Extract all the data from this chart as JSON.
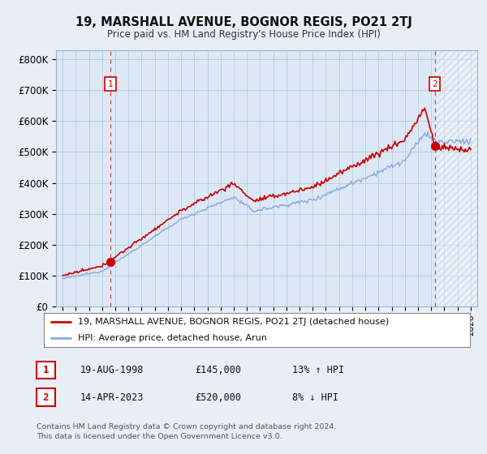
{
  "title": "19, MARSHALL AVENUE, BOGNOR REGIS, PO21 2TJ",
  "subtitle": "Price paid vs. HM Land Registry's House Price Index (HPI)",
  "ylabel_ticks": [
    "£0",
    "£100K",
    "£200K",
    "£300K",
    "£400K",
    "£500K",
    "£600K",
    "£700K",
    "£800K"
  ],
  "ytick_values": [
    0,
    100000,
    200000,
    300000,
    400000,
    500000,
    600000,
    700000,
    800000
  ],
  "ylim": [
    0,
    830000
  ],
  "xlim_start": 1994.5,
  "xlim_end": 2026.5,
  "sale1_x": 1998.63,
  "sale1_y": 145000,
  "sale1_label": "1",
  "sale2_x": 2023.28,
  "sale2_y": 520000,
  "sale2_label": "2",
  "red_line_color": "#cc0000",
  "blue_line_color": "#88aadd",
  "dashed_color": "#cc0000",
  "legend_red_label": "19, MARSHALL AVENUE, BOGNOR REGIS, PO21 2TJ (detached house)",
  "legend_blue_label": "HPI: Average price, detached house, Arun",
  "sale1_date": "19-AUG-1998",
  "sale1_price": "£145,000",
  "sale1_hpi": "13% ↑ HPI",
  "sale2_date": "14-APR-2023",
  "sale2_price": "£520,000",
  "sale2_hpi": "8% ↓ HPI",
  "footer": "Contains HM Land Registry data © Crown copyright and database right 2024.\nThis data is licensed under the Open Government Licence v3.0.",
  "background_color": "#e8eef5",
  "plot_bg_color": "#dce8f5",
  "grid_color": "#b0c4d8",
  "hatch_color": "#c0ccd8"
}
